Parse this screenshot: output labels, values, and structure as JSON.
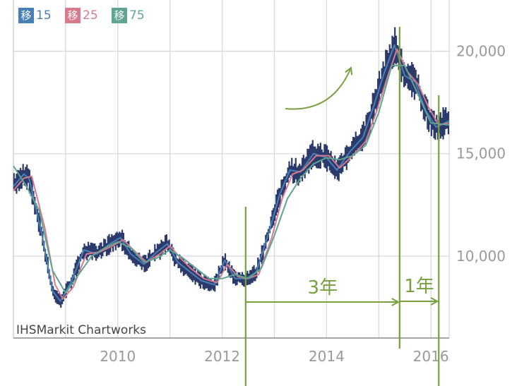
{
  "legend": {
    "items": [
      {
        "box": "移",
        "label": "15",
        "color": "#4a7fb5"
      },
      {
        "box": "移",
        "label": "25",
        "color": "#d67b8e"
      },
      {
        "box": "移",
        "label": "75",
        "color": "#5fa393"
      }
    ]
  },
  "credit": "IHSMarkit Chartworks",
  "annotations": {
    "span1": "3年",
    "span2": "1年",
    "color": "#78a040"
  },
  "colors": {
    "candle": "#2b3a6b",
    "ma15": "#4a7fb5",
    "ma25": "#d67b8e",
    "ma75": "#5fa393",
    "grid": "#d9d9d9",
    "axis_text": "#999999"
  },
  "chart_data": {
    "type": "line",
    "title": "",
    "xlabel": "",
    "ylabel": "",
    "x_ticks": [
      "2010",
      "2012",
      "2014",
      "2016"
    ],
    "y_ticks": [
      "10,000",
      "15,000",
      "20,000"
    ],
    "xlim": [
      2008.0,
      2016.35
    ],
    "ylim": [
      6000,
      22500
    ],
    "grid": true,
    "legend_position": "top-left",
    "series": [
      {
        "name": "15",
        "x": [
          2008.0,
          2008.2,
          2008.3,
          2008.55,
          2008.75,
          2008.9,
          2009.1,
          2009.35,
          2009.6,
          2009.85,
          2010.05,
          2010.25,
          2010.5,
          2010.75,
          2010.95,
          2011.15,
          2011.35,
          2011.6,
          2011.85,
          2012.05,
          2012.25,
          2012.45,
          2012.65,
          2012.9,
          2013.1,
          2013.3,
          2013.5,
          2013.75,
          2014.0,
          2014.2,
          2014.45,
          2014.7,
          2014.9,
          2015.1,
          2015.3,
          2015.5,
          2015.7,
          2015.9,
          2016.1,
          2016.35
        ],
        "values": [
          13400,
          14000,
          13800,
          11000,
          8300,
          7800,
          8700,
          10300,
          10100,
          10600,
          10900,
          10100,
          9600,
          10200,
          10600,
          9700,
          9300,
          8800,
          8600,
          9800,
          8900,
          8900,
          9200,
          11200,
          13000,
          14200,
          14100,
          15000,
          14800,
          14200,
          15100,
          15800,
          17300,
          18900,
          20300,
          18800,
          18500,
          17100,
          16300,
          16600
        ]
      },
      {
        "name": "25",
        "x": [
          2008.0,
          2008.2,
          2008.35,
          2008.6,
          2008.8,
          2008.95,
          2009.15,
          2009.4,
          2009.65,
          2009.9,
          2010.1,
          2010.3,
          2010.55,
          2010.8,
          2011.0,
          2011.2,
          2011.4,
          2011.65,
          2011.9,
          2012.1,
          2012.3,
          2012.5,
          2012.7,
          2012.95,
          2013.15,
          2013.35,
          2013.55,
          2013.8,
          2014.05,
          2014.25,
          2014.5,
          2014.75,
          2014.95,
          2015.15,
          2015.35,
          2015.55,
          2015.75,
          2015.95,
          2016.15,
          2016.35
        ],
        "values": [
          13200,
          13800,
          13900,
          11400,
          8600,
          7900,
          8500,
          10100,
          10200,
          10500,
          10800,
          10300,
          9700,
          10100,
          10500,
          9900,
          9400,
          8900,
          8700,
          9600,
          9000,
          8900,
          9100,
          10900,
          12800,
          14000,
          14200,
          14900,
          14900,
          14300,
          14900,
          15600,
          17000,
          18600,
          20100,
          19000,
          18400,
          17300,
          16400,
          16500
        ]
      },
      {
        "name": "75",
        "x": [
          2008.0,
          2008.25,
          2008.5,
          2008.75,
          2009.0,
          2009.25,
          2009.5,
          2009.75,
          2010.0,
          2010.25,
          2010.5,
          2010.75,
          2011.0,
          2011.25,
          2011.5,
          2011.75,
          2012.0,
          2012.25,
          2012.5,
          2012.75,
          2013.0,
          2013.25,
          2013.5,
          2013.75,
          2014.0,
          2014.25,
          2014.5,
          2014.75,
          2015.0,
          2015.25,
          2015.5,
          2015.75,
          2016.0,
          2016.35
        ],
        "values": [
          14400,
          13400,
          12200,
          9300,
          8200,
          9100,
          10000,
          10400,
          10700,
          10400,
          9700,
          9900,
          10300,
          9900,
          9400,
          8900,
          8900,
          9100,
          8900,
          9400,
          11000,
          12800,
          13800,
          14500,
          14800,
          14700,
          14900,
          15400,
          17000,
          19300,
          19300,
          17900,
          16500,
          16400
        ]
      }
    ],
    "annotations": [
      {
        "text": "3年",
        "from_x": 2012.45,
        "to_x": 2015.4
      },
      {
        "text": "1年",
        "from_x": 2015.4,
        "to_x": 2016.15
      }
    ]
  }
}
